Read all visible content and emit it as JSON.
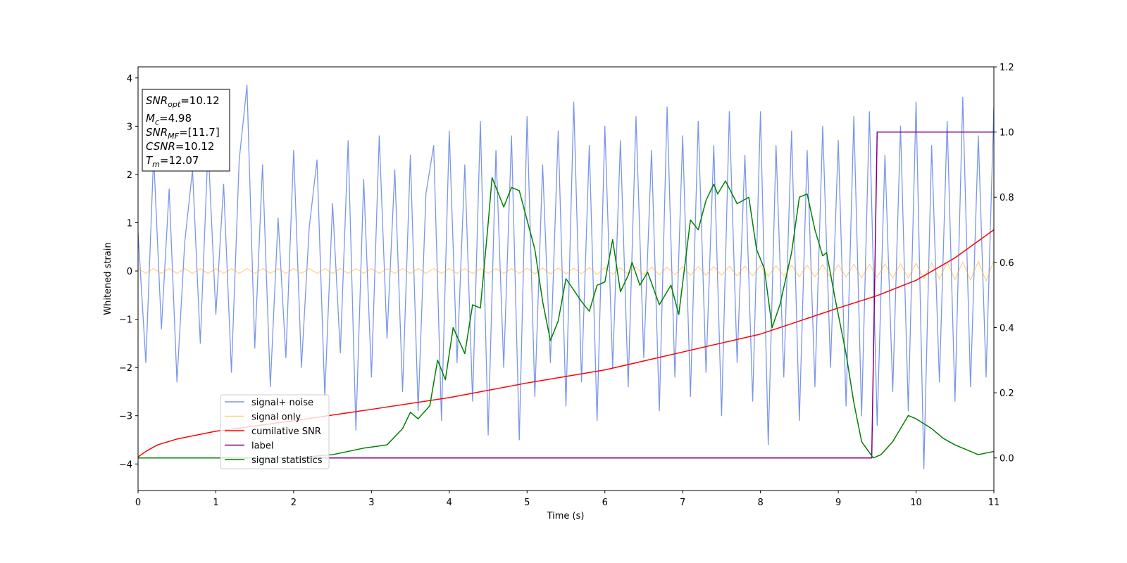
{
  "chart_data": {
    "type": "line",
    "xlabel": "Time (s)",
    "ylabel": "Whitened strain",
    "xlim": [
      0,
      11
    ],
    "xticks": [
      0,
      1,
      2,
      3,
      4,
      5,
      6,
      7,
      8,
      9,
      10,
      11
    ],
    "ylim": [
      -4.55,
      4.23
    ],
    "yticks": [
      {
        "value": -4,
        "label": "−4"
      },
      {
        "value": -3,
        "label": "−3"
      },
      {
        "value": -2,
        "label": "−2"
      },
      {
        "value": -1,
        "label": "−1"
      },
      0,
      1,
      2,
      3,
      4
    ],
    "y2lim": [
      -0.1,
      1.2
    ],
    "y2ticks": [
      {
        "value": 0,
        "label": "0.0"
      },
      {
        "value": 0.2,
        "label": "0.2"
      },
      {
        "value": 0.4,
        "label": "0.4"
      },
      {
        "value": 0.6,
        "label": "0.6"
      },
      {
        "value": 0.8,
        "label": "0.8"
      },
      {
        "value": 1,
        "label": "1.0"
      },
      {
        "value": 1.2,
        "label": "1.2"
      }
    ],
    "x": [
      0,
      0.1,
      0.2,
      0.3,
      0.4,
      0.5,
      0.6,
      0.7,
      0.8,
      0.9,
      1,
      1.1,
      1.2,
      1.3,
      1.4,
      1.5,
      1.6,
      1.7,
      1.8,
      1.9,
      2,
      2.1,
      2.2,
      2.3,
      2.4,
      2.5,
      2.6,
      2.7,
      2.8,
      2.9,
      3,
      3.1,
      3.2,
      3.3,
      3.4,
      3.5,
      3.6,
      3.7,
      3.8,
      3.9,
      4,
      4.1,
      4.2,
      4.3,
      4.4,
      4.5,
      4.6,
      4.7,
      4.8,
      4.9,
      5,
      5.1,
      5.2,
      5.3,
      5.4,
      5.5,
      5.6,
      5.7,
      5.8,
      5.9,
      6,
      6.1,
      6.2,
      6.3,
      6.4,
      6.5,
      6.6,
      6.7,
      6.8,
      6.9,
      7,
      7.1,
      7.2,
      7.3,
      7.4,
      7.5,
      7.6,
      7.7,
      7.8,
      7.9,
      8,
      8.1,
      8.2,
      8.3,
      8.4,
      8.5,
      8.6,
      8.7,
      8.8,
      8.9,
      9,
      9.1,
      9.2,
      9.3,
      9.4,
      9.5,
      9.6,
      9.7,
      9.8,
      9.9,
      10,
      10.1,
      10.2,
      10.3,
      10.4,
      10.5,
      10.6,
      10.7,
      10.8,
      10.9,
      11
    ],
    "series": [
      {
        "name": "signal+ noise",
        "color": "#4169e1",
        "values": [
          0.8,
          -1.9,
          2.4,
          -1.2,
          1.7,
          -2.3,
          0.6,
          2.1,
          -1.5,
          2.6,
          -0.9,
          1.8,
          -2.1,
          2.3,
          3.85,
          -1.6,
          2.2,
          -2.4,
          1.1,
          -1.8,
          2.5,
          -2.0,
          0.9,
          2.3,
          -2.6,
          1.4,
          -1.7,
          2.7,
          -3.3,
          1.9,
          -2.2,
          2.8,
          -1.4,
          2.1,
          -2.5,
          2.4,
          -2.9,
          1.6,
          2.6,
          -3.1,
          2.9,
          -1.9,
          2.2,
          -2.7,
          3.1,
          -3.4,
          2.5,
          -2.0,
          2.8,
          -3.5,
          3.2,
          -2.6,
          2.2,
          -1.9,
          2.9,
          -2.8,
          3.5,
          -2.3,
          2.6,
          -3.1,
          3.0,
          -2.0,
          2.7,
          -2.4,
          3.2,
          -1.8,
          2.5,
          -2.9,
          3.4,
          -2.2,
          2.8,
          -2.6,
          3.1,
          -2.1,
          2.6,
          -3.0,
          3.3,
          -1.9,
          2.4,
          -2.7,
          3.3,
          -3.6,
          2.6,
          -2.2,
          2.9,
          -3.1,
          2.5,
          -2.4,
          3.0,
          -2.0,
          2.7,
          -2.8,
          3.2,
          -3.0,
          3.3,
          -3.2,
          2.4,
          -2.5,
          3.0,
          -2.9,
          3.5,
          -4.1,
          2.6,
          -2.3,
          3.1,
          -2.7,
          3.6,
          -2.4,
          2.8,
          -2.2,
          3.4
        ]
      },
      {
        "name": "signal only",
        "color": "#ffa500",
        "values": [
          0.05,
          -0.05,
          0.05,
          -0.05,
          0.05,
          -0.05,
          0.05,
          -0.05,
          0.05,
          -0.05,
          0.05,
          -0.05,
          0.05,
          -0.05,
          0.05,
          -0.05,
          0.05,
          -0.05,
          0.05,
          -0.05,
          0.05,
          -0.05,
          0.05,
          -0.05,
          0.05,
          -0.05,
          0.05,
          -0.05,
          0.05,
          -0.05,
          0.05,
          -0.05,
          0.05,
          -0.05,
          0.05,
          -0.05,
          0.05,
          -0.05,
          0.05,
          -0.05,
          0.05,
          -0.05,
          0.05,
          -0.05,
          0.05,
          -0.05,
          0.05,
          -0.05,
          0.05,
          -0.05,
          0.06,
          -0.06,
          0.06,
          -0.06,
          0.06,
          -0.06,
          0.06,
          -0.06,
          0.07,
          -0.07,
          0.07,
          -0.07,
          0.07,
          -0.07,
          0.08,
          -0.08,
          0.08,
          -0.08,
          0.08,
          -0.08,
          0.09,
          -0.09,
          0.09,
          -0.09,
          0.09,
          -0.09,
          0.1,
          -0.1,
          0.1,
          -0.1,
          0.11,
          -0.11,
          0.11,
          -0.11,
          0.12,
          -0.12,
          0.12,
          -0.12,
          0.13,
          -0.13,
          0.13,
          -0.13,
          0.14,
          -0.14,
          0.14,
          -0.14,
          0.15,
          -0.15,
          0.15,
          -0.15,
          0.16,
          -0.16,
          0.17,
          -0.17,
          0.18,
          -0.18,
          0.19,
          -0.19,
          0.2,
          -0.21,
          0.22
        ]
      },
      {
        "name": "cumilative SNR",
        "color": "#ff0000",
        "axis": "y2",
        "x": [
          0,
          0.1,
          0.25,
          0.5,
          1,
          2,
          3,
          4,
          5,
          6,
          7,
          8,
          9,
          9.5,
          10,
          10.5,
          11
        ],
        "values": [
          0.003,
          0.02,
          0.04,
          0.058,
          0.082,
          0.114,
          0.149,
          0.185,
          0.23,
          0.27,
          0.325,
          0.38,
          0.46,
          0.498,
          0.545,
          0.614,
          0.7
        ]
      },
      {
        "name": "label",
        "color": "#800080",
        "axis": "y2",
        "x": [
          0,
          9.43,
          9.5,
          11
        ],
        "values": [
          0,
          0,
          1,
          1
        ]
      },
      {
        "name": "signal statistics",
        "color": "#008000",
        "axis": "y2",
        "x": [
          0,
          1,
          2,
          2.5,
          2.9,
          3.2,
          3.4,
          3.5,
          3.6,
          3.75,
          3.85,
          3.95,
          4.05,
          4.2,
          4.3,
          4.4,
          4.5,
          4.55,
          4.7,
          4.8,
          4.9,
          5.1,
          5.2,
          5.3,
          5.4,
          5.5,
          5.7,
          5.8,
          5.9,
          6.0,
          6.1,
          6.2,
          6.3,
          6.35,
          6.45,
          6.55,
          6.7,
          6.85,
          6.95,
          7.1,
          7.2,
          7.3,
          7.4,
          7.45,
          7.55,
          7.7,
          7.85,
          7.95,
          8.05,
          8.15,
          8.25,
          8.4,
          8.5,
          8.6,
          8.7,
          8.8,
          8.85,
          8.95,
          9.1,
          9.2,
          9.3,
          9.45,
          9.55,
          9.7,
          9.9,
          10.0,
          10.2,
          10.35,
          10.5,
          10.6,
          10.8,
          11
        ],
        "values": [
          0.0,
          0.0,
          0.0,
          0.01,
          0.03,
          0.04,
          0.09,
          0.14,
          0.12,
          0.16,
          0.3,
          0.24,
          0.4,
          0.32,
          0.47,
          0.46,
          0.72,
          0.86,
          0.77,
          0.83,
          0.82,
          0.64,
          0.48,
          0.36,
          0.42,
          0.55,
          0.48,
          0.45,
          0.53,
          0.54,
          0.67,
          0.51,
          0.56,
          0.6,
          0.53,
          0.57,
          0.47,
          0.53,
          0.44,
          0.73,
          0.7,
          0.79,
          0.84,
          0.81,
          0.85,
          0.78,
          0.8,
          0.64,
          0.58,
          0.4,
          0.47,
          0.63,
          0.8,
          0.81,
          0.7,
          0.62,
          0.63,
          0.5,
          0.32,
          0.17,
          0.05,
          0.0,
          0.01,
          0.05,
          0.13,
          0.12,
          0.09,
          0.06,
          0.04,
          0.03,
          0.01,
          0.02
        ]
      }
    ],
    "annotation": [
      {
        "main": "SNR",
        "sub": "opt",
        "rest": "=10.12"
      },
      {
        "main": "M",
        "sub": "c",
        "rest": "=4.98"
      },
      {
        "main": "SNR",
        "sub": "MF",
        "rest": "=[11.7]"
      },
      {
        "main": "CSNR",
        "rest": "=10.12"
      },
      {
        "main": "T",
        "sub": "m",
        "rest": "=12.07"
      }
    ]
  }
}
